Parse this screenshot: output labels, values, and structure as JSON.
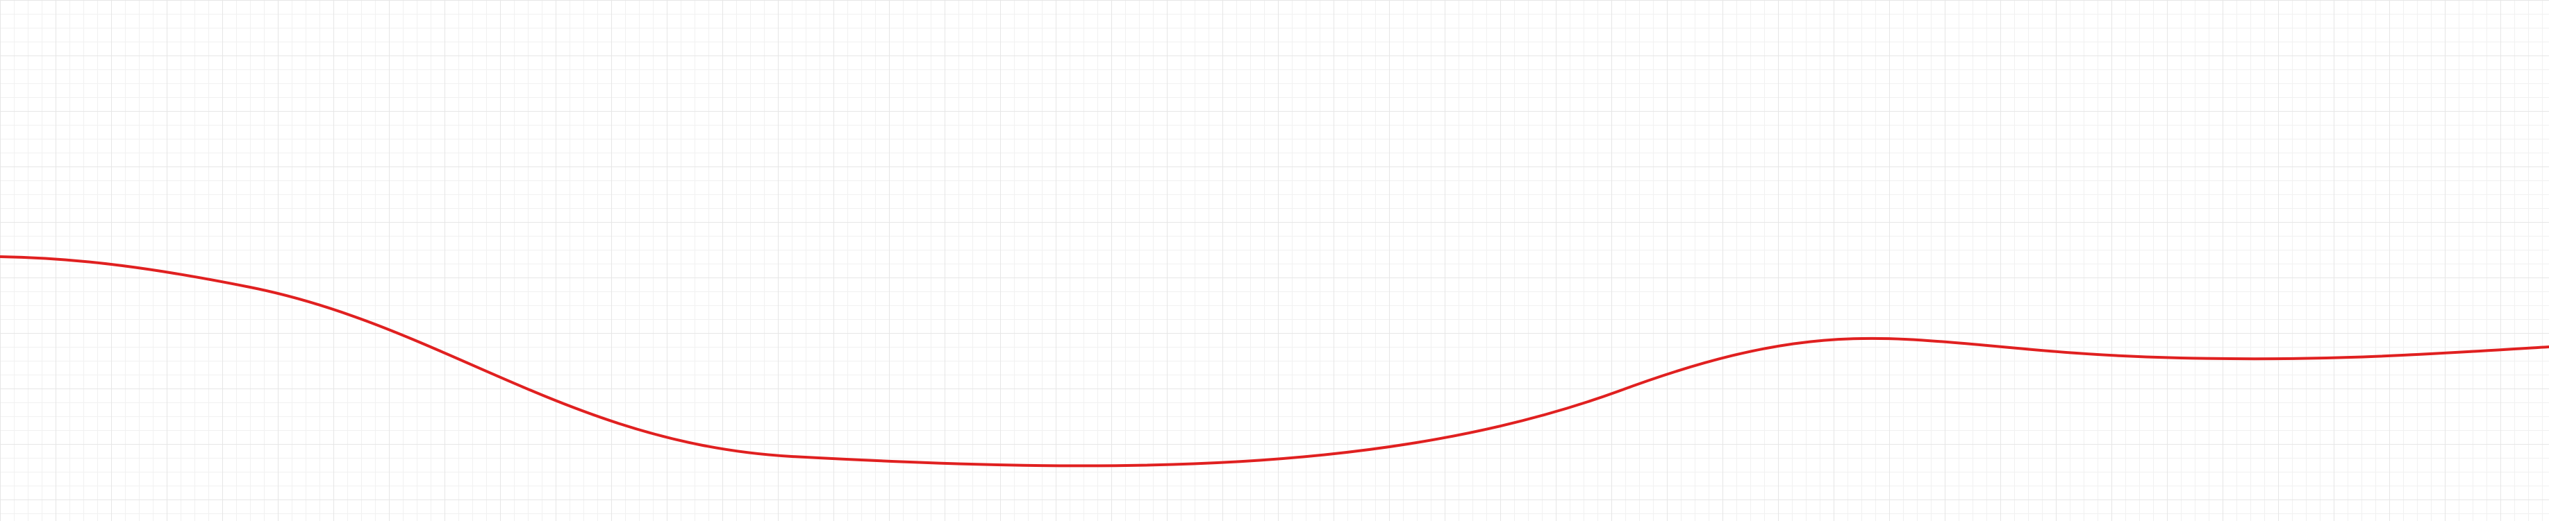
{
  "canvas": {
    "background_color": "#ffffff",
    "grid": {
      "visible": true,
      "minor_line_color": "#f1f1f1",
      "major_line_color": "#e6e6e6"
    }
  },
  "curve": {
    "name": "freehand-curve",
    "stroke_color": "#e02020"
  }
}
